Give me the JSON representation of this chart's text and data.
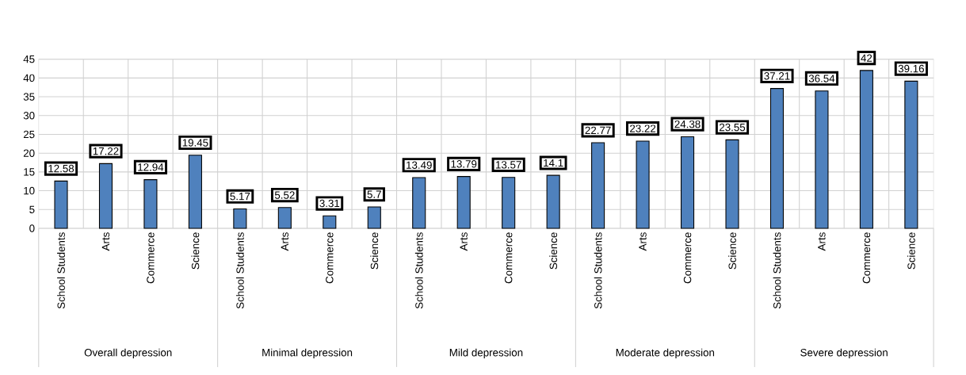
{
  "chart_data": {
    "type": "bar",
    "categories": [
      "School Students",
      "Arts",
      "Commerce",
      "Science",
      "School Students",
      "Arts",
      "Commerce",
      "Science",
      "School Students",
      "Arts",
      "Commerce",
      "Science",
      "School Students",
      "Arts",
      "Commerce",
      "Science",
      "School Students",
      "Arts",
      "Commerce",
      "Science"
    ],
    "values": [
      12.58,
      17.22,
      12.94,
      19.45,
      5.17,
      5.52,
      3.31,
      5.7,
      13.49,
      13.79,
      13.57,
      14.1,
      22.77,
      23.22,
      24.38,
      23.55,
      37.21,
      36.54,
      42,
      39.16
    ],
    "color": "#4f81bd",
    "ylim": [
      0,
      45
    ],
    "yticks": [
      0,
      5,
      10,
      15,
      20,
      25,
      30,
      35,
      40,
      45
    ],
    "grid": true,
    "data_labels": true,
    "annotations": [
      "Overall depression",
      "Minimal depression",
      "Mild depression",
      "Moderate depression",
      "Severe depression"
    ]
  }
}
